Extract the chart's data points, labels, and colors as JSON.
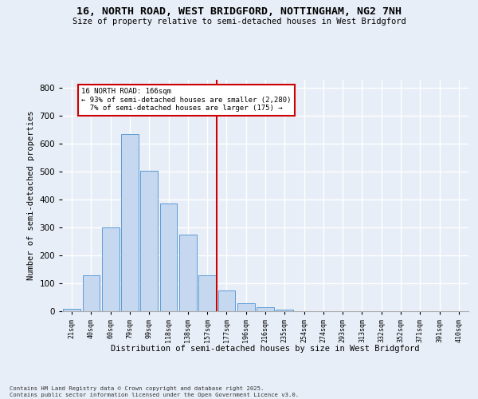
{
  "title_line1": "16, NORTH ROAD, WEST BRIDGFORD, NOTTINGHAM, NG2 7NH",
  "title_line2": "Size of property relative to semi-detached houses in West Bridgford",
  "xlabel": "Distribution of semi-detached houses by size in West Bridgford",
  "ylabel": "Number of semi-detached properties",
  "categories": [
    "21sqm",
    "40sqm",
    "60sqm",
    "79sqm",
    "99sqm",
    "118sqm",
    "138sqm",
    "157sqm",
    "177sqm",
    "196sqm",
    "216sqm",
    "235sqm",
    "254sqm",
    "274sqm",
    "293sqm",
    "313sqm",
    "332sqm",
    "352sqm",
    "371sqm",
    "391sqm",
    "410sqm"
  ],
  "bar_values": [
    10,
    130,
    300,
    635,
    505,
    385,
    275,
    130,
    75,
    30,
    13,
    6,
    0,
    0,
    0,
    0,
    0,
    0,
    0,
    0,
    0
  ],
  "bar_color": "#c5d8f0",
  "bar_edge_color": "#5b9bd5",
  "property_label": "16 NORTH ROAD: 166sqm",
  "pct_smaller": 93,
  "n_smaller": 2280,
  "pct_larger": 7,
  "n_larger": 175,
  "vline_x": 7.5,
  "ylim": [
    0,
    830
  ],
  "yticks": [
    0,
    100,
    200,
    300,
    400,
    500,
    600,
    700,
    800
  ],
  "background_color": "#e8eef7",
  "grid_color": "#ffffff",
  "vline_color": "#cc0000",
  "box_color": "#cc0000",
  "footnote_line1": "Contains HM Land Registry data © Crown copyright and database right 2025.",
  "footnote_line2": "Contains public sector information licensed under the Open Government Licence v3.0."
}
